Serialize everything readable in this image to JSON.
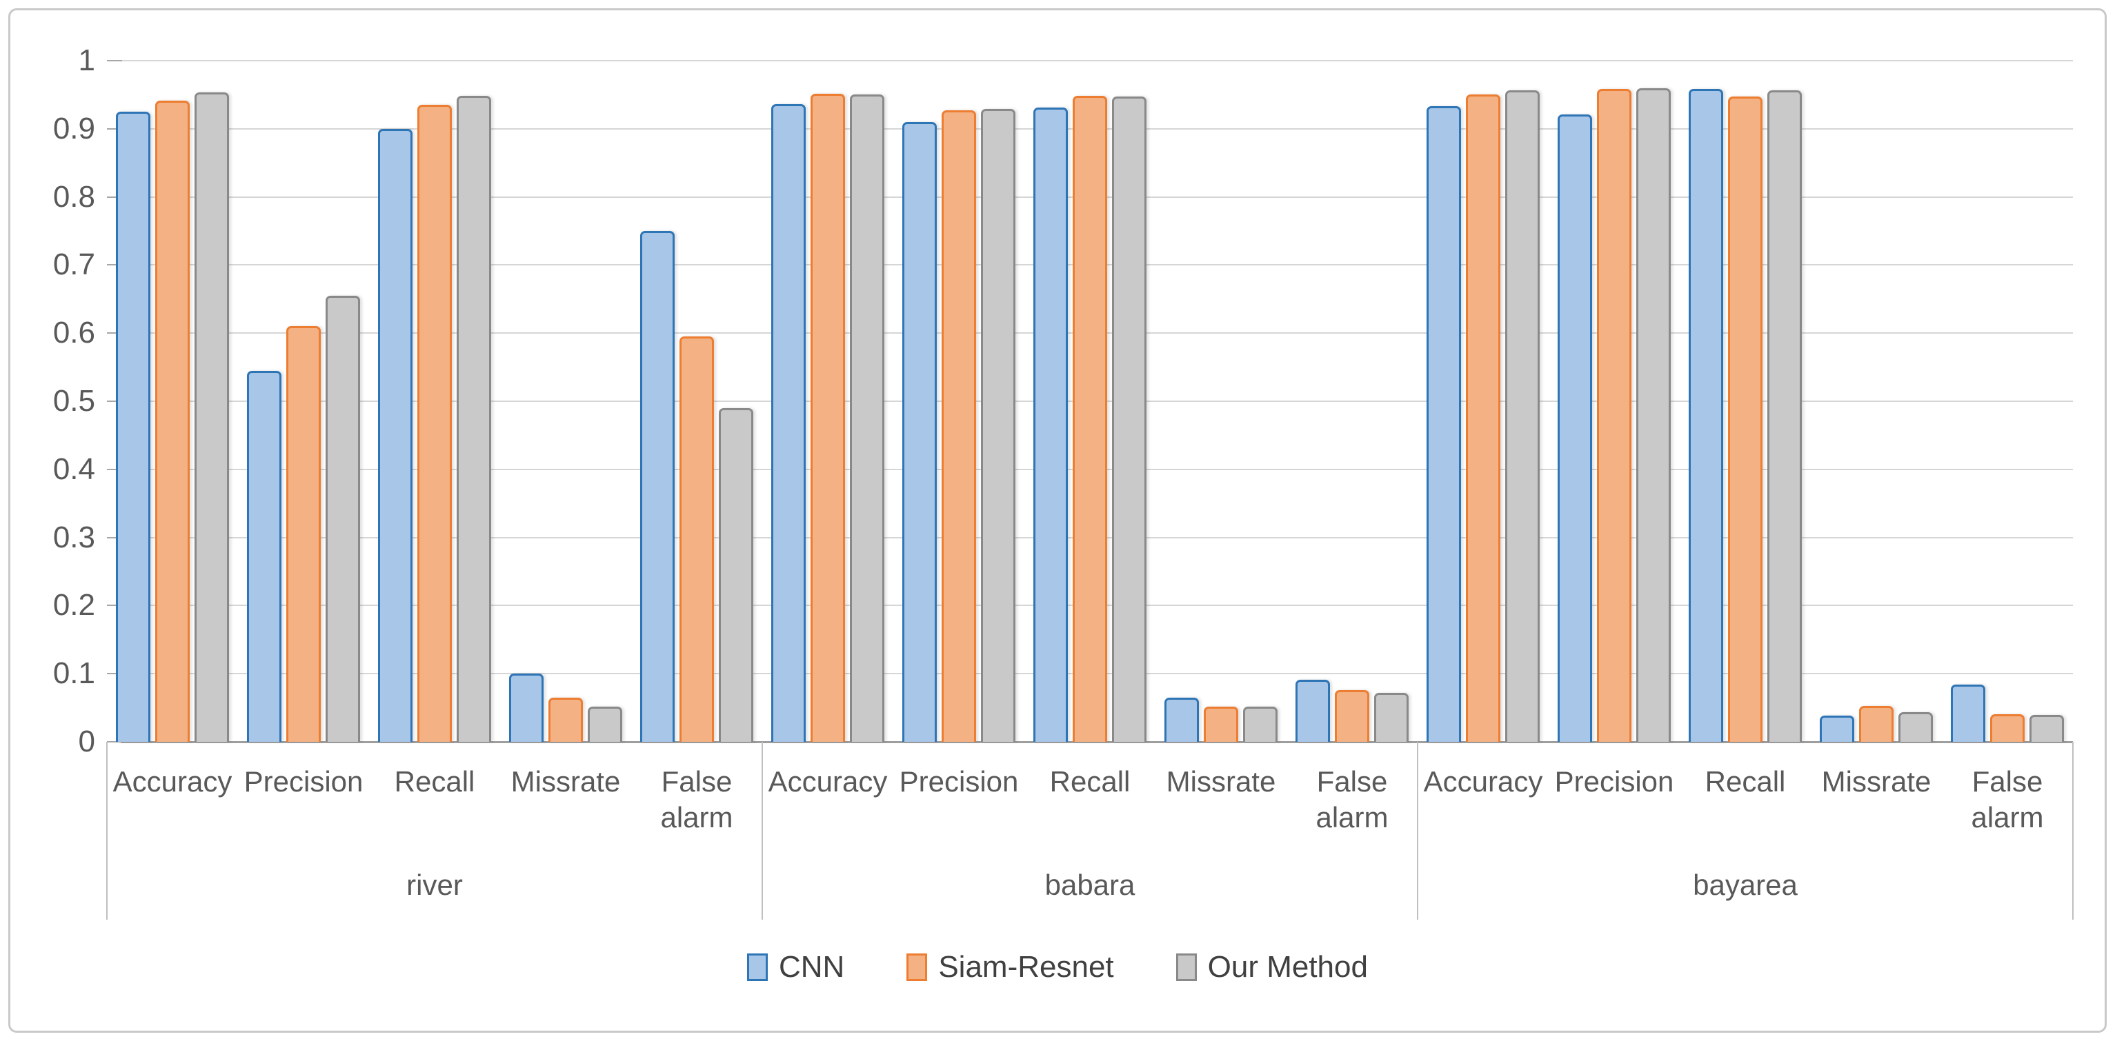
{
  "figure": {
    "border_color": "#c9c9c9",
    "background": "#ffffff"
  },
  "colors": {
    "text": "#595959",
    "gridline": "#d6d6d6",
    "baseline": "#9e9e9e",
    "divider": "#bfbfbf"
  },
  "legend": {
    "position": "bottom-center",
    "items": [
      "CNN",
      "Siam-Resnet",
      "Our Method"
    ]
  },
  "chart_data": {
    "type": "bar",
    "title": "",
    "xlabel": "",
    "ylabel": "",
    "ylim": [
      0,
      1
    ],
    "grid": true,
    "legend_position": "bottom",
    "ytick_labels": [
      "1",
      "0.9",
      "0.8",
      "0.7",
      "0.6",
      "0.5",
      "0.4",
      "0.3",
      "0.2",
      "0.1",
      "0"
    ],
    "ytick_values": [
      1,
      0.9,
      0.8,
      0.7,
      0.6,
      0.5,
      0.4,
      0.3,
      0.2,
      0.1,
      0
    ],
    "groups": [
      "river",
      "babara",
      "bayarea"
    ],
    "categories": [
      "Accuracy",
      "Precision",
      "Recall",
      "Missrate",
      "False alarm"
    ],
    "series": [
      {
        "name": "CNN",
        "fill": "#a8c6e8",
        "border": "#2e75b6",
        "values": [
          [
            0.925,
            0.545,
            0.9,
            0.1,
            0.75
          ],
          [
            0.936,
            0.91,
            0.931,
            0.065,
            0.091
          ],
          [
            0.933,
            0.921,
            0.958,
            0.038,
            0.084
          ]
        ]
      },
      {
        "name": "Siam-Resnet",
        "fill": "#f4b183",
        "border": "#ed7d31",
        "values": [
          [
            0.941,
            0.61,
            0.935,
            0.065,
            0.595
          ],
          [
            0.951,
            0.927,
            0.948,
            0.052,
            0.076
          ],
          [
            0.95,
            0.958,
            0.947,
            0.053,
            0.04
          ]
        ]
      },
      {
        "name": "Our Method",
        "fill": "#c9c9c9",
        "border": "#898989",
        "values": [
          [
            0.953,
            0.655,
            0.948,
            0.052,
            0.49
          ],
          [
            0.95,
            0.929,
            0.947,
            0.052,
            0.072
          ],
          [
            0.956,
            0.96,
            0.956,
            0.044,
            0.039
          ]
        ]
      }
    ]
  }
}
